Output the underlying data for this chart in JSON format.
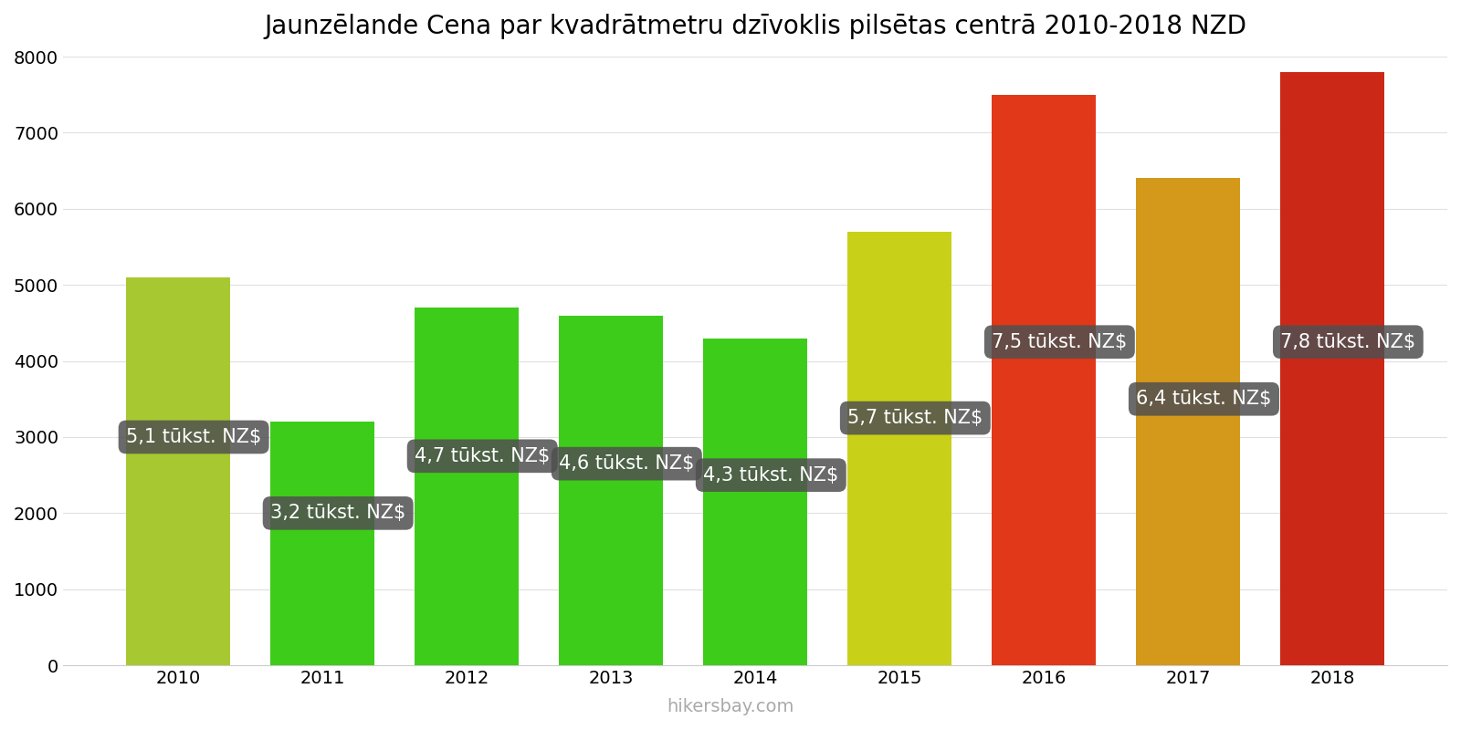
{
  "title": "Jaunzēlande Cena par kvadrātmetru dzīvoklis pilsētas centrā 2010-2018 NZD",
  "years": [
    2010,
    2011,
    2012,
    2013,
    2014,
    2015,
    2016,
    2017,
    2018
  ],
  "values": [
    5100,
    3200,
    4700,
    4600,
    4300,
    5700,
    7500,
    6400,
    7800
  ],
  "bar_colors": [
    "#a8c832",
    "#3ecc1a",
    "#3ecc1a",
    "#3ecc1a",
    "#3ecc1a",
    "#c8d018",
    "#e03818",
    "#d4981a",
    "#cc2818"
  ],
  "labels": [
    "5,1 tūkst. NZ$",
    "3,2 tūkst. NZ$",
    "4,7 tūkst. NZ$",
    "4,6 tūkst. NZ$",
    "4,3 tūkst. NZ$",
    "5,7 tūkst. NZ$",
    "7,5 tūkst. NZ$",
    "6,4 tūkst. NZ$",
    "7,8 tūkst. NZ$"
  ],
  "label_y_positions": [
    3000,
    2000,
    2750,
    2650,
    2500,
    3250,
    4250,
    3500,
    4250
  ],
  "ylim": [
    0,
    8000
  ],
  "yticks": [
    0,
    1000,
    2000,
    3000,
    4000,
    5000,
    6000,
    7000,
    8000
  ],
  "bar_width": 0.72,
  "watermark": "hikersbay.com",
  "background_color": "#ffffff",
  "grid_color": "#e0e0e0",
  "label_box_color_dark": "#505050",
  "label_box_color_mid": "#606060",
  "label_text_color": "#ffffff",
  "title_fontsize": 20,
  "label_fontsize": 15,
  "tick_fontsize": 14,
  "watermark_fontsize": 14
}
